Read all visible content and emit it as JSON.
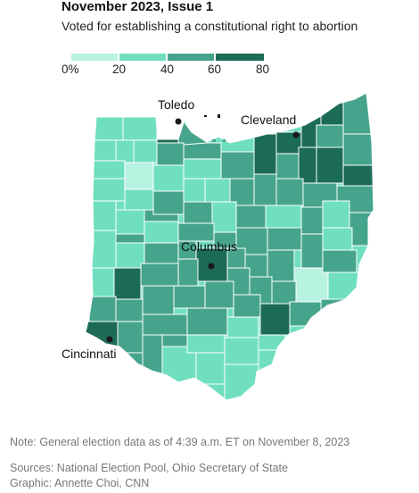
{
  "header": {
    "title": "November 2023, Issue 1",
    "subtitle": "Voted for establishing a constitutional right to abortion"
  },
  "legend": {
    "ticks": [
      "0%",
      "20",
      "40",
      "60",
      "80"
    ],
    "bins": [
      {
        "color": "#b8f2e0"
      },
      {
        "color": "#6fdfc0"
      },
      {
        "color": "#46a48d"
      },
      {
        "color": "#1b6b56"
      }
    ]
  },
  "colors": {
    "bin1": "#b8f2e0",
    "bin2": "#6fdfc0",
    "bin3": "#46a48d",
    "bin4": "#1b6b56",
    "border": "#ffffff",
    "city_dot": "#1a1a1a"
  },
  "cities": [
    {
      "name": "Toledo"
    },
    {
      "name": "Cleveland"
    },
    {
      "name": "Columbus"
    },
    {
      "name": "Cincinnati"
    }
  ],
  "footer": {
    "note": "Note: General election data as of 4:39 a.m. ET on November 8, 2023",
    "sources": "Sources: National Election Pool, Ohio Secretary of State",
    "graphic": "Graphic: Annette Choi, CNN"
  }
}
